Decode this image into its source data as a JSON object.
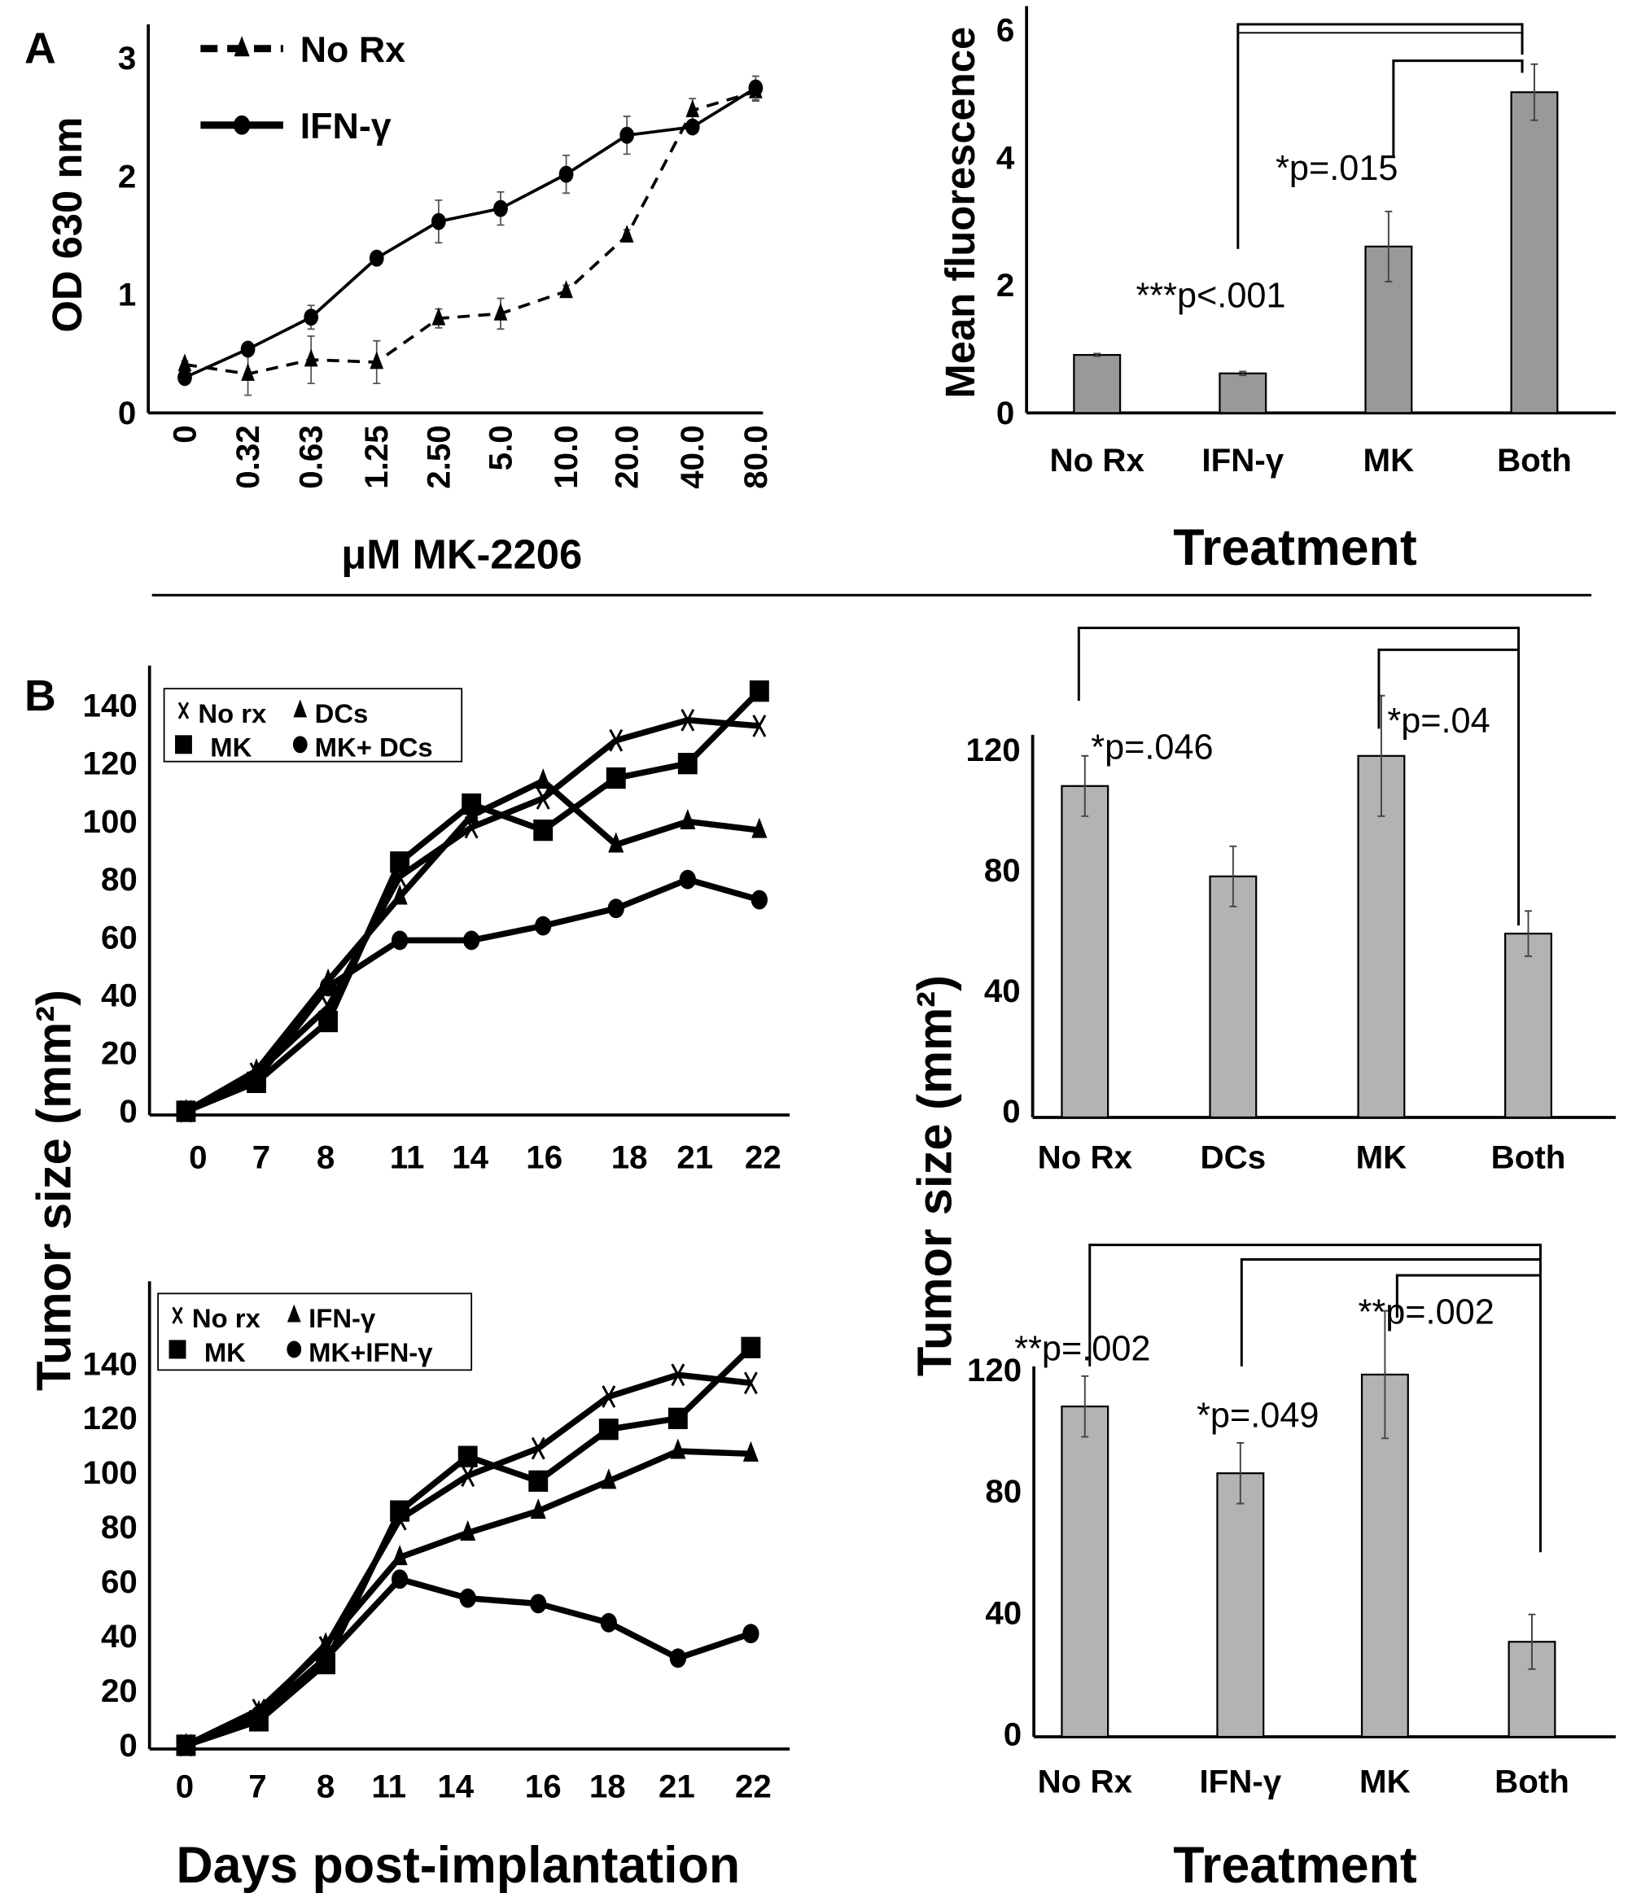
{
  "panel_labels": [
    "A",
    "B"
  ],
  "shared_labels": {
    "tumor_size_left": "Tumor size (mm²)",
    "tumor_size_right": "Tumor size (mm²)"
  },
  "chart_data": [
    {
      "id": "A-line",
      "type": "line",
      "title": "",
      "xlabel": "μM MK-2206",
      "ylabel": "OD 630 nm",
      "categories": [
        "0",
        "0.32",
        "0.63",
        "1.25",
        "2.50",
        "5.0",
        "10.0",
        "20.0",
        "40.0",
        "80.0"
      ],
      "ylim": [
        0,
        3
      ],
      "yticks": [
        0,
        1,
        2,
        3
      ],
      "grid": false,
      "legend_position": "top-left",
      "series": [
        {
          "name": "No Rx",
          "marker": "triangle",
          "line": "dashed",
          "values": [
            0.41,
            0.33,
            0.45,
            0.43,
            0.8,
            0.84,
            1.03,
            1.5,
            2.56,
            2.72
          ],
          "errors": [
            0.03,
            0.18,
            0.2,
            0.18,
            0.08,
            0.13,
            0.05,
            0.05,
            0.1,
            0.08
          ]
        },
        {
          "name": "IFN-γ",
          "marker": "circle",
          "line": "solid",
          "values": [
            0.3,
            0.54,
            0.81,
            1.31,
            1.62,
            1.73,
            2.02,
            2.35,
            2.42,
            2.75
          ],
          "errors": [
            0.02,
            0.03,
            0.1,
            0.03,
            0.18,
            0.14,
            0.16,
            0.16,
            0.03,
            0.1
          ]
        }
      ]
    },
    {
      "id": "A-bar",
      "type": "bar",
      "title": "",
      "xlabel": "Treatment",
      "ylabel": "Mean fluorescence",
      "categories": [
        "No Rx",
        "IFN-γ",
        "MK",
        "Both"
      ],
      "values": [
        0.91,
        0.62,
        2.61,
        5.03
      ],
      "errors": [
        0.02,
        0.03,
        0.55,
        0.44
      ],
      "ylim": [
        0,
        6
      ],
      "yticks": [
        0,
        2,
        4,
        6
      ],
      "bar_color": "#999999",
      "significance": [
        {
          "from": "IFN-γ",
          "to": "Both",
          "label": "***p<.001"
        },
        {
          "from": "MK",
          "to": "Both",
          "label": "*p=.015"
        }
      ]
    },
    {
      "id": "B-line-DCs",
      "type": "line",
      "title": "",
      "xlabel": "",
      "ylabel": "",
      "categories": [
        "0",
        "7",
        "8",
        "11",
        "14",
        "16",
        "18",
        "21",
        "22"
      ],
      "ylim": [
        0,
        145
      ],
      "yticks": [
        0,
        20,
        40,
        60,
        80,
        100,
        120,
        140
      ],
      "grid": false,
      "legend_position": "top-left",
      "series": [
        {
          "name": "No rx",
          "marker": "x",
          "values": [
            0,
            13,
            36,
            81,
            98,
            108,
            128,
            135,
            133
          ]
        },
        {
          "name": "DCs",
          "marker": "triangle",
          "values": [
            0,
            14,
            45,
            74,
            102,
            114,
            92,
            100,
            97
          ]
        },
        {
          "name": "MK",
          "marker": "square",
          "values": [
            0,
            10,
            31,
            86,
            106,
            97,
            115,
            120,
            145
          ]
        },
        {
          "name": "MK+ DCs",
          "marker": "circle",
          "values": [
            0,
            11,
            43,
            59,
            59,
            64,
            70,
            80,
            73
          ]
        }
      ]
    },
    {
      "id": "B-bar-DCs",
      "type": "bar",
      "title": "",
      "xlabel": "",
      "ylabel": "",
      "categories": [
        "No Rx",
        "DCs",
        "MK",
        "Both"
      ],
      "values": [
        108,
        78,
        118,
        59
      ],
      "errors": [
        10,
        10,
        20,
        7.5
      ],
      "ylim": [
        0,
        125
      ],
      "yticks": [
        0,
        40,
        80,
        120
      ],
      "bar_color": "#b3b3b3",
      "significance": [
        {
          "from": "No Rx",
          "to": "Both",
          "label": "*p=.046"
        },
        {
          "from": "MK",
          "to": "Both",
          "label": "*p=.04"
        }
      ]
    },
    {
      "id": "B-line-IFN",
      "type": "line",
      "title": "",
      "xlabel": "Days post-implantation",
      "ylabel": "",
      "categories": [
        "0",
        "7",
        "8",
        "11",
        "14",
        "16",
        "18",
        "21",
        "22"
      ],
      "ylim": [
        0,
        150
      ],
      "yticks": [
        0,
        20,
        40,
        60,
        80,
        100,
        120,
        140
      ],
      "grid": false,
      "legend_position": "top-left",
      "series": [
        {
          "name": "No rx",
          "marker": "x",
          "values": [
            0,
            13,
            36,
            83,
            99,
            109,
            128,
            136,
            133
          ]
        },
        {
          "name": "IFN-γ",
          "marker": "triangle",
          "values": [
            0,
            12,
            37,
            69,
            78,
            86,
            97,
            108,
            107
          ]
        },
        {
          "name": "MK",
          "marker": "square",
          "values": [
            0,
            9,
            30,
            86,
            106,
            97,
            116,
            120,
            146
          ]
        },
        {
          "name": "MK+IFN-γ",
          "marker": "circle",
          "values": [
            0,
            11,
            32,
            61,
            54,
            52,
            45,
            32,
            41
          ]
        }
      ]
    },
    {
      "id": "B-bar-IFN",
      "type": "bar",
      "title": "",
      "xlabel": "Treatment",
      "ylabel": "",
      "categories": [
        "No Rx",
        "IFN-γ",
        "MK",
        "Both"
      ],
      "values": [
        108,
        86,
        118.5,
        30.5
      ],
      "errors": [
        10,
        10,
        21,
        9
      ],
      "ylim": [
        0,
        125
      ],
      "yticks": [
        0,
        40,
        80,
        120
      ],
      "bar_color": "#b3b3b3",
      "significance": [
        {
          "from": "No Rx",
          "to": "Both",
          "label": "**p=.002"
        },
        {
          "from": "IFN-γ",
          "to": "Both",
          "label": "*p=.049"
        },
        {
          "from": "MK",
          "to": "Both",
          "label": "**p=.002"
        }
      ]
    }
  ]
}
